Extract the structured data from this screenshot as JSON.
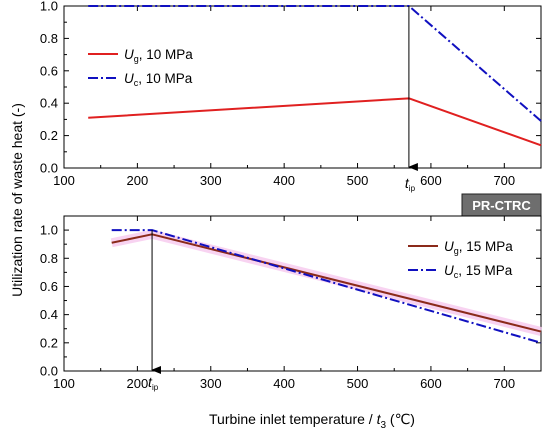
{
  "figure": {
    "ylabel": "Utilization rate of waste heat (-)",
    "xlabel_main": "Turbine inlet temperature / ",
    "xlabel_var": "t",
    "xlabel_sub": "3",
    "xlabel_unit": " (℃)",
    "badge": "PR-CTRC",
    "colors": {
      "red": "#e02020",
      "blue": "#1010c0",
      "brown": "#8b2a1a",
      "pinkband": "#f6c8ee",
      "badge_bg": "#6e6e6e"
    }
  },
  "chart_data": [
    {
      "type": "line",
      "panel": "top",
      "xlim": [
        100,
        750
      ],
      "ylim": [
        0.0,
        1.0
      ],
      "xticks": [
        100,
        200,
        300,
        400,
        500,
        600,
        700
      ],
      "yticks": [
        "0.0",
        "0.2",
        "0.4",
        "0.6",
        "0.8",
        "1.0"
      ],
      "series": [
        {
          "name_main": "U",
          "name_sub": "g",
          "name_rest": ", 10 MPa",
          "color": "#e02020",
          "style": "solid",
          "x": [
            133,
            570,
            750
          ],
          "y": [
            0.31,
            0.43,
            0.14
          ]
        },
        {
          "name_main": "U",
          "name_sub": "c",
          "name_rest": ", 10 MPa",
          "color": "#1010c0",
          "style": "dashdot",
          "x": [
            133,
            570,
            750
          ],
          "y": [
            1.0,
            1.0,
            0.29
          ]
        }
      ],
      "marker": {
        "label_main": "t",
        "label_sub": "ip",
        "x": 570
      },
      "legend_position": "top-left"
    },
    {
      "type": "line",
      "panel": "bottom",
      "xlim": [
        100,
        750
      ],
      "ylim": [
        0.0,
        1.1
      ],
      "xticks": [
        100,
        200,
        300,
        400,
        500,
        600,
        700
      ],
      "yticks": [
        "0.0",
        "0.2",
        "0.4",
        "0.6",
        "0.8",
        "1.0"
      ],
      "series": [
        {
          "name_main": "U",
          "name_sub": "g",
          "name_rest": ", 15 MPa",
          "color": "#8b2a1a",
          "style": "solid",
          "x": [
            165,
            220,
            750
          ],
          "y": [
            0.91,
            0.97,
            0.28
          ]
        },
        {
          "name_main": "U",
          "name_sub": "c",
          "name_rest": ", 15 MPa",
          "color": "#1010c0",
          "style": "dashdot",
          "x": [
            165,
            220,
            750
          ],
          "y": [
            1.0,
            1.0,
            0.2
          ]
        }
      ],
      "marker": {
        "label_main": "t",
        "label_sub": "ip",
        "x": 220
      },
      "legend_position": "right"
    }
  ]
}
